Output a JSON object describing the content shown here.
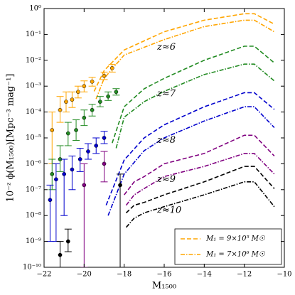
{
  "chart_data": {
    "type": "line",
    "x_label": "M₁₅₀₀",
    "y_label": "10⁻ᶻ ϕ(M₁₅₀₀)[Mpc⁻³ mag⁻¹]",
    "log_y": true,
    "xlim": [
      -22,
      -10
    ],
    "ylim": [
      1e-10,
      1
    ],
    "xticks": [
      {
        "value": -22,
        "label": "−22"
      },
      {
        "value": -20,
        "label": "−20"
      },
      {
        "value": -18,
        "label": "−18"
      },
      {
        "value": -16,
        "label": "−16"
      },
      {
        "value": -14,
        "label": "−14"
      },
      {
        "value": -12,
        "label": "−12"
      },
      {
        "value": -10,
        "label": "−10"
      }
    ],
    "yticks": [
      {
        "value": 1e-10,
        "label": "10⁻¹⁰"
      },
      {
        "value": 1e-09,
        "label": "10⁻⁹"
      },
      {
        "value": 1e-08,
        "label": "10⁻⁸"
      },
      {
        "value": 1e-07,
        "label": "10⁻⁷"
      },
      {
        "value": 1e-06,
        "label": "10⁻⁶"
      },
      {
        "value": 1e-05,
        "label": "10⁻⁵"
      },
      {
        "value": 0.0001,
        "label": "10⁻⁴"
      },
      {
        "value": 0.001,
        "label": "10⁻³"
      },
      {
        "value": 0.01,
        "label": "10⁻²"
      },
      {
        "value": 0.1,
        "label": "10⁻¹"
      },
      {
        "value": 1,
        "label": "10⁰"
      }
    ],
    "legend_position": "lower right",
    "legend_color": "#ffa500",
    "legend": [
      {
        "label": "M₁ = 9×10⁵ M☉",
        "style": "dashed"
      },
      {
        "label": "M₁ = 7×10⁶ M☉",
        "style": "dashdot"
      }
    ],
    "groups": [
      {
        "label": "z≈6",
        "color": "#ffa500",
        "dashed": {
          "x": [
            -19.5,
            -19,
            -18,
            -16,
            -14,
            -12,
            -11.5,
            -10.5
          ],
          "values": [
            0.00063,
            0.004,
            0.025,
            0.126,
            0.355,
            0.63,
            0.63,
            0.25
          ]
        },
        "dashdot": {
          "x": [
            -19.4,
            -19,
            -18,
            -16,
            -14,
            -12,
            -11.5,
            -10.5
          ],
          "values": [
            0.00032,
            0.002,
            0.016,
            0.063,
            0.2,
            0.355,
            0.355,
            0.126
          ]
        },
        "points": {
          "x": [
            -21.6,
            -21.2,
            -20.9,
            -20.6,
            -20.3,
            -20.0,
            -19.6,
            -19.0,
            -18.6
          ],
          "values": [
            2e-05,
            0.00012,
            0.00025,
            0.0003,
            0.0006,
            0.001,
            0.0015,
            0.0025,
            0.005
          ],
          "ylow": [
            1e-06,
            4e-05,
            0.0001,
            0.00015,
            0.00035,
            0.0006,
            0.001,
            0.0018,
            0.0035
          ],
          "yhigh": [
            0.0001,
            0.0004,
            0.0006,
            0.0006,
            0.001,
            0.0016,
            0.0022,
            0.0035,
            0.007
          ]
        }
      },
      {
        "label": "z≈7",
        "color": "#228b22",
        "dashed": {
          "x": [
            -18.6,
            -18,
            -17,
            -16,
            -14,
            -12,
            -11.5,
            -10.5
          ],
          "values": [
            6.3e-06,
            0.00016,
            0.00079,
            0.002,
            0.01,
            0.035,
            0.035,
            0.0079
          ]
        },
        "dashdot": {
          "x": [
            -18.4,
            -18,
            -17,
            -16,
            -14,
            -12,
            -11.5,
            -10.5
          ],
          "values": [
            4e-06,
            6.3e-05,
            0.00025,
            0.00063,
            0.0028,
            0.0071,
            0.0071,
            0.0016
          ]
        },
        "points": {
          "x": [
            -21.6,
            -21.2,
            -20.8,
            -20.4,
            -20.0,
            -19.6,
            -19.2,
            -18.8,
            -18.4
          ],
          "values": [
            4e-07,
            1.5e-06,
            1.5e-05,
            2e-05,
            6e-05,
            0.00012,
            0.00025,
            0.0004,
            0.0006
          ],
          "ylow": [
            1e-07,
            5e-07,
            5e-06,
            8e-06,
            3e-05,
            7e-05,
            0.00016,
            0.00028,
            0.00045
          ],
          "yhigh": [
            1.5e-06,
            5e-06,
            4e-05,
            5e-05,
            0.00012,
            0.0002,
            0.0004,
            0.0006,
            0.0008
          ]
        }
      },
      {
        "label": "z≈8",
        "color": "#0000cd",
        "dashed": {
          "x": [
            -18.9,
            -18,
            -17,
            -16,
            -14,
            -12,
            -11.5,
            -10.5
          ],
          "values": [
            2.5e-08,
            1.4e-06,
            1e-05,
            3.2e-05,
            0.00016,
            0.00056,
            0.00056,
            0.000126
          ]
        },
        "dashdot": {
          "x": [
            -18.8,
            -18,
            -17,
            -16,
            -14,
            -12,
            -11.5,
            -10.5
          ],
          "values": [
            1e-08,
            4e-07,
            3.2e-06,
            1e-05,
            4.5e-05,
            0.00016,
            0.00016,
            2.5e-05
          ]
        },
        "points": {
          "x": [
            -21.7,
            -21.4,
            -21.0,
            -20.6,
            -20.2,
            -19.8,
            -19.4,
            -19.0
          ],
          "values": [
            4e-08,
            2.5e-07,
            4e-07,
            6e-07,
            1.5e-06,
            3e-06,
            5e-06,
            1e-05
          ],
          "ylow": [
            1e-09,
            1e-09,
            1e-08,
            1e-07,
            5e-07,
            1.5e-06,
            2.5e-06,
            6e-06
          ],
          "yhigh": [
            1.5e-07,
            1e-06,
            1.5e-06,
            2e-06,
            4e-06,
            6e-06,
            1e-05,
            1.8e-05
          ]
        }
      },
      {
        "label": "z≈9",
        "color": "#800080",
        "dashed": {
          "x": [
            -18,
            -17.5,
            -17,
            -16,
            -14,
            -12,
            -11.5,
            -10.5
          ],
          "values": [
            6.3e-08,
            2e-07,
            3.2e-07,
            1e-06,
            2.5e-06,
            1.26e-05,
            1.26e-05,
            2e-06
          ]
        },
        "dashdot": {
          "x": [
            -17.9,
            -17.5,
            -17,
            -16,
            -14,
            -12,
            -11.5,
            -10.5
          ],
          "values": [
            2.5e-08,
            6.3e-08,
            1.1e-07,
            3.2e-07,
            7.9e-07,
            2.5e-06,
            2.5e-06,
            4e-07
          ]
        },
        "points": {
          "x": [
            -20.0,
            -19.0
          ],
          "values": [
            1.5e-07,
            1e-06
          ],
          "ylow": [
            1e-10,
            2e-07
          ],
          "yhigh": [
            1e-06,
            3e-06
          ]
        }
      },
      {
        "label": "z≈10",
        "color": "#000000",
        "dashed": {
          "x": [
            -17.9,
            -17.5,
            -17,
            -16,
            -14,
            -12,
            -11.5,
            -10.5
          ],
          "values": [
            1.26e-08,
            2.5e-08,
            3.2e-08,
            6.3e-08,
            2e-07,
            7.9e-07,
            7.9e-07,
            1.1e-07
          ]
        },
        "dashdot": {
          "x": [
            -17.9,
            -17.5,
            -17,
            -16,
            -14,
            -12,
            -11.5,
            -10.5
          ],
          "values": [
            3.5e-09,
            7.9e-09,
            1.26e-08,
            2.2e-08,
            6.3e-08,
            2e-07,
            2e-07,
            2.2e-08
          ]
        },
        "points": {
          "x": [
            -21.2,
            -20.8,
            -18.2
          ],
          "values": [
            3e-10,
            1e-09,
            1.5e-07
          ],
          "ylow": [
            1e-10,
            4e-10,
            1e-10
          ],
          "yhigh": [
            1e-09,
            3e-09,
            4e-07
          ]
        }
      }
    ]
  }
}
